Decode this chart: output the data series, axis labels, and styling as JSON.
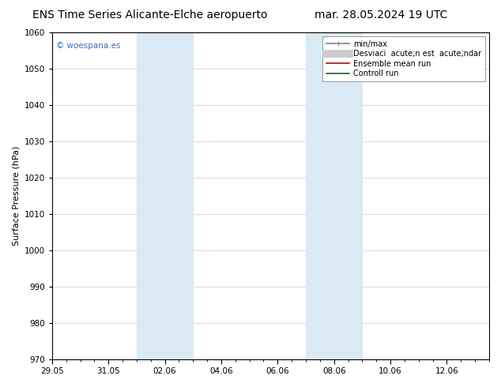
{
  "title_left": "ENS Time Series Alicante-Elche aeropuerto",
  "title_right": "mar. 28.05.2024 19 UTC",
  "ylabel": "Surface Pressure (hPa)",
  "ylim": [
    970,
    1060
  ],
  "yticks": [
    970,
    980,
    990,
    1000,
    1010,
    1020,
    1030,
    1040,
    1050,
    1060
  ],
  "xlim": [
    0,
    15.5
  ],
  "xtick_labels": [
    "29.05",
    "31.05",
    "02.06",
    "04.06",
    "06.06",
    "08.06",
    "10.06",
    "12.06"
  ],
  "xtick_positions": [
    0,
    2,
    4,
    6,
    8,
    10,
    12,
    14
  ],
  "shade_regions": [
    {
      "start": 3.0,
      "end": 5.0
    },
    {
      "start": 9.0,
      "end": 11.0
    }
  ],
  "shade_color": "#daeaf5",
  "watermark": "© woespana.es",
  "watermark_color": "#3a6abf",
  "legend_items": [
    {
      "label": "min/max",
      "color": "#999999",
      "lw": 1.5
    },
    {
      "label": "Desviaci  acute;n est  acute;ndar",
      "color": "#cccccc",
      "lw": 7
    },
    {
      "label": "Ensemble mean run",
      "color": "#cc0000",
      "lw": 1.2
    },
    {
      "label": "Controll run",
      "color": "#007700",
      "lw": 1.2
    }
  ],
  "bg_color": "#ffffff",
  "title_fontsize": 10,
  "axis_label_fontsize": 8,
  "tick_fontsize": 7.5,
  "legend_fontsize": 7
}
